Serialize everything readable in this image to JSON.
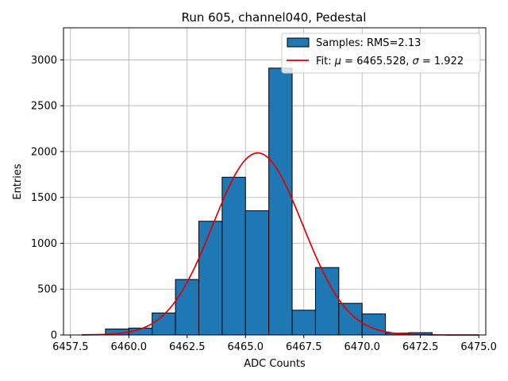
{
  "chart_data": {
    "type": "bar",
    "title": "Run 605, channel040, Pedestal",
    "xlabel": "ADC Counts",
    "ylabel": "Entries",
    "xlim": [
      6457.2,
      6475.3
    ],
    "ylim": [
      0,
      3350
    ],
    "xticks": [
      6457.5,
      6460.0,
      6462.5,
      6465.0,
      6467.5,
      6470.0,
      6472.5,
      6475.0
    ],
    "xtick_labels": [
      "6457.5",
      "6460.0",
      "6462.5",
      "6465.0",
      "6467.5",
      "6470.0",
      "6472.5",
      "6475.0"
    ],
    "yticks": [
      0,
      500,
      1000,
      1500,
      2000,
      2500,
      3000
    ],
    "ytick_labels": [
      "0",
      "500",
      "1000",
      "1500",
      "2000",
      "2500",
      "3000"
    ],
    "grid": true,
    "legend_position": "top-right",
    "histogram": {
      "name": "Samples: RMS=2.13",
      "color": "#1f77b4",
      "edge_color": "#000000",
      "bin_edges": [
        6458.0,
        6459.0,
        6460.0,
        6461.0,
        6462.0,
        6463.0,
        6464.0,
        6465.0,
        6466.0,
        6467.0,
        6468.0,
        6469.0,
        6470.0,
        6471.0,
        6472.0,
        6473.0,
        6474.0,
        6475.0
      ],
      "values": [
        5,
        65,
        75,
        240,
        605,
        1240,
        1720,
        1355,
        2910,
        270,
        735,
        345,
        230,
        20,
        25,
        0,
        0
      ]
    },
    "fit": {
      "name": "Fit: μ = 6465.528, σ = 1.922",
      "label_prefix": "Fit: ",
      "mu_symbol": "μ",
      "mu_text": " = 6465.528, ",
      "sigma_symbol": "σ",
      "sigma_text": " = 1.922",
      "color": "#e00000",
      "mu": 6465.528,
      "sigma": 1.922,
      "amplitude": 1985,
      "x_range": [
        6458.0,
        6475.0
      ]
    }
  }
}
